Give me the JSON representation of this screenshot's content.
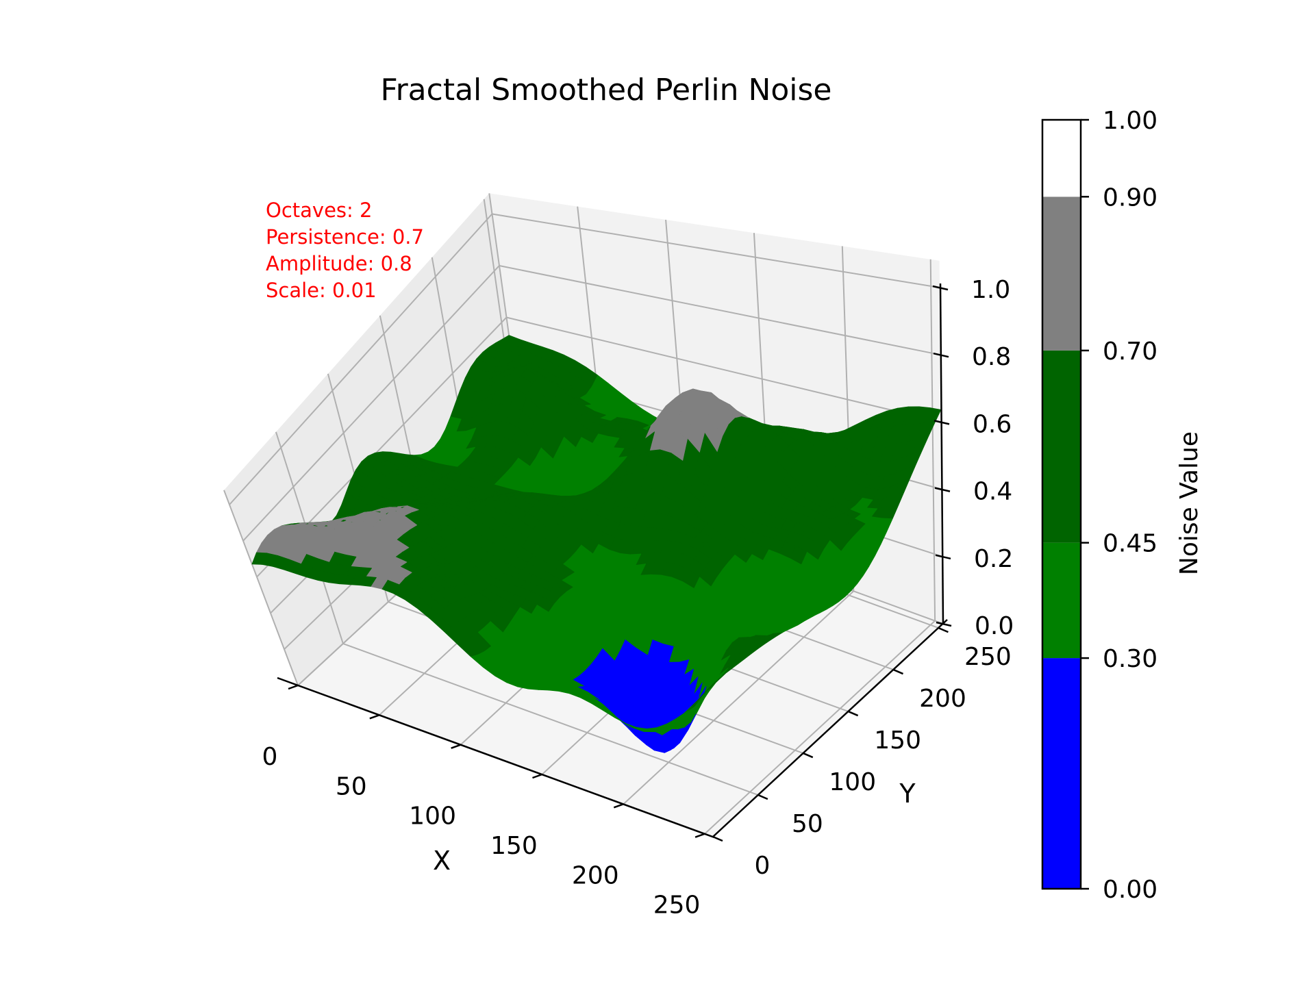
{
  "chart_data": {
    "type": "surface3d",
    "title": "Fractal Smoothed Perlin Noise",
    "xlabel": "X",
    "ylabel": "Y",
    "xlim": [
      0,
      255
    ],
    "ylim": [
      0,
      255
    ],
    "zlim": [
      0,
      1
    ],
    "x_ticks": [
      "0",
      "50",
      "100",
      "150",
      "200",
      "250"
    ],
    "y_ticks": [
      "0",
      "50",
      "100",
      "150",
      "200",
      "250"
    ],
    "z_ticks": [
      "0.0",
      "0.2",
      "0.4",
      "0.6",
      "0.8",
      "1.0"
    ],
    "grid": true,
    "annotations": [
      "Octaves: 2",
      "Persistence: 0.7",
      "Amplitude: 0.8",
      "Scale: 0.01"
    ],
    "annotation_color": "#ff0000",
    "colorbar": {
      "label": "Noise Value",
      "boundaries": [
        0.0,
        0.3,
        0.45,
        0.7,
        0.9,
        1.0
      ],
      "tick_labels": [
        "0.00",
        "0.30",
        "0.45",
        "0.70",
        "0.90",
        "1.00"
      ],
      "colors": [
        "#0000ff",
        "#008000",
        "#006400",
        "#808080",
        "#ffffff"
      ]
    }
  }
}
